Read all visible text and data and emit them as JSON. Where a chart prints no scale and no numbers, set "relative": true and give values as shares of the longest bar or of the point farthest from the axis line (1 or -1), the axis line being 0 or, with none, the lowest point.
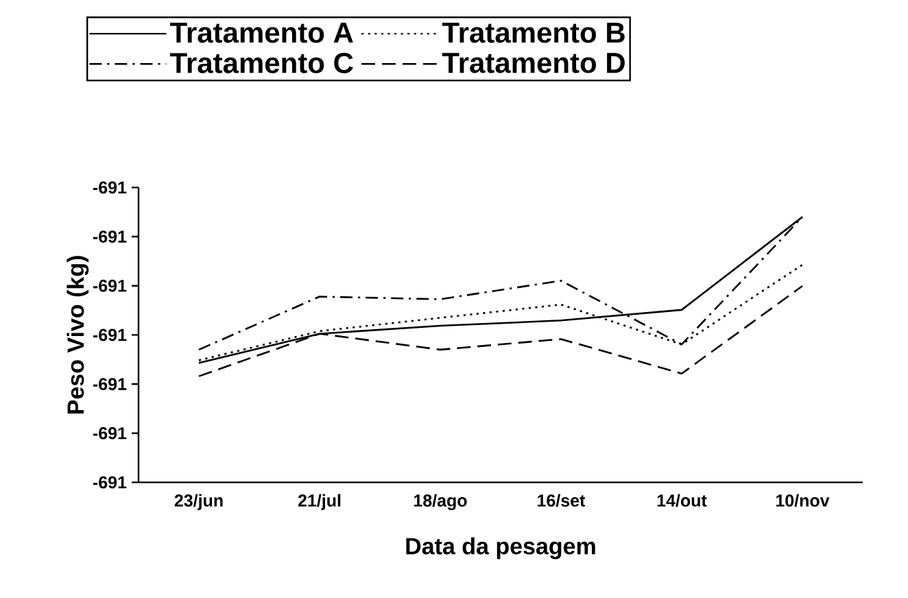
{
  "chart_data": {
    "type": "line",
    "xlabel": "Data da pesagem",
    "ylabel": "Peso Vivo (kg)",
    "categories": [
      "23/jun",
      "21/jul",
      "18/ago",
      "16/set",
      "14/out",
      "10/nov"
    ],
    "relative": true,
    "annotations": [
      "-691",
      "-691",
      "-691",
      "-691",
      "-691",
      "-691",
      "-691"
    ],
    "legend": "top",
    "marker": "none",
    "series": [
      {
        "name": "Tratamento A",
        "color": "#000000",
        "line_style": "solid",
        "values": [
          0.45,
          0.56,
          0.59,
          0.61,
          0.65,
          1
        ]
      },
      {
        "name": "Tratamento B",
        "color": "#000000",
        "line_style": "dotted",
        "values": [
          0.46,
          0.57,
          0.62,
          0.67,
          0.52,
          0.82
        ]
      },
      {
        "name": "Tratamento C",
        "color": "#000000",
        "line_style": "dashdot",
        "values": [
          0.5,
          0.7,
          0.69,
          0.76,
          0.52,
          1
        ]
      },
      {
        "name": "Tratamento D",
        "color": "#000000",
        "line_style": "dashed",
        "values": [
          0.4,
          0.56,
          0.5,
          0.54,
          0.41,
          0.74
        ]
      }
    ]
  }
}
